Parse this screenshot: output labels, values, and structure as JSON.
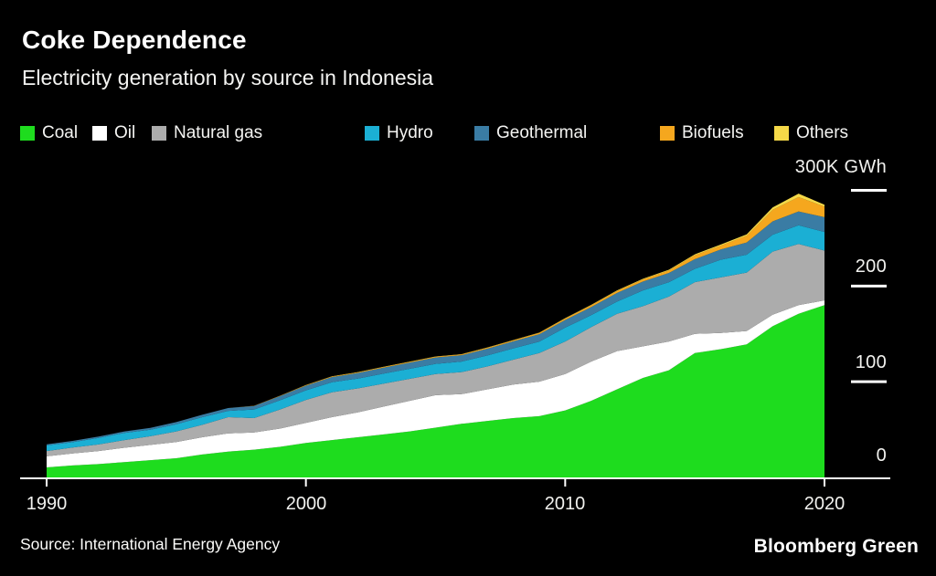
{
  "footer": {
    "source": "Source: International Energy Agency",
    "brand": "Bloomberg Green"
  },
  "colors": {
    "background": "#000000",
    "text": "#ffffff",
    "axis": "#ffffff"
  },
  "chart_data": {
    "type": "area",
    "stacked": true,
    "title": "Coke Dependence",
    "subtitle": "Electricity generation by source in Indonesia",
    "unit": "K GWh",
    "legend_position": "top",
    "grid": false,
    "ylim": [
      0,
      300
    ],
    "x": [
      1990,
      1991,
      1992,
      1993,
      1994,
      1995,
      1996,
      1997,
      1998,
      1999,
      2000,
      2001,
      2002,
      2003,
      2004,
      2005,
      2006,
      2007,
      2008,
      2009,
      2010,
      2011,
      2012,
      2013,
      2014,
      2015,
      2016,
      2017,
      2018,
      2019,
      2020
    ],
    "x_tick_years": [
      1990,
      2000,
      2010,
      2020
    ],
    "x_tick_labels": [
      "1990",
      "2000",
      "2010",
      "2020"
    ],
    "y_tick_values": [
      300,
      200,
      100,
      0
    ],
    "y_tick_labels": [
      "300K GWh",
      "200",
      "100",
      "0"
    ],
    "series": [
      {
        "id": "coal",
        "name": "Coal",
        "color": "#1edc1e",
        "values": [
          10.5,
          12.5,
          14,
          16,
          18,
          20,
          24,
          27,
          29,
          32,
          36,
          39,
          42,
          45,
          48,
          52,
          56,
          59,
          62,
          64,
          70,
          80,
          92,
          104,
          112,
          130,
          134,
          139,
          158,
          171,
          180
        ]
      },
      {
        "id": "oil",
        "name": "Oil",
        "color": "#ffffff",
        "values": [
          11.5,
          12.5,
          13.5,
          15,
          16,
          17,
          18,
          19,
          18,
          19,
          21,
          24,
          26,
          29,
          32,
          34,
          31,
          33,
          35,
          36,
          38,
          41,
          40,
          33,
          30,
          20,
          17,
          14,
          12,
          9,
          5
        ]
      },
      {
        "id": "natural-gas",
        "name": "Natural gas",
        "color": "#acacac",
        "values": [
          5.6,
          6.2,
          7,
          8,
          9,
          11,
          13,
          17,
          15,
          20,
          24,
          26,
          25,
          24,
          23,
          22,
          23,
          24,
          26,
          30,
          34,
          36,
          39,
          42,
          47,
          54,
          58,
          61,
          66,
          64,
          52
        ]
      },
      {
        "id": "hydro",
        "name": "Hydro",
        "color": "#1bafd4",
        "values": [
          5.9,
          5.7,
          6.8,
          7.5,
          6.9,
          7.6,
          8,
          6.5,
          9,
          9.6,
          10,
          10.5,
          10.3,
          10.5,
          10.5,
          10.7,
          11,
          11.5,
          11.8,
          11.9,
          14.5,
          12.5,
          12.8,
          16.4,
          15,
          14,
          18.5,
          18.7,
          17.6,
          19.5,
          19.5
        ]
      },
      {
        "id": "geothermal",
        "name": "Geothermal",
        "color": "#3a7ca4",
        "values": [
          1.1,
          1.2,
          1.4,
          1.6,
          1.8,
          2.2,
          2.5,
          3,
          3.6,
          4.4,
          4.9,
          5.3,
          5.8,
          6.2,
          6.5,
          6.6,
          6.7,
          7,
          7.4,
          7.8,
          8,
          8.5,
          9,
          9.3,
          9.7,
          10.1,
          10.7,
          12.8,
          14,
          14.5,
          15.5
        ]
      },
      {
        "id": "biofuels",
        "name": "Biofuels",
        "color": "#f5a71e",
        "values": [
          0,
          0,
          0,
          0,
          0,
          0,
          0,
          0,
          0.3,
          0.4,
          0.5,
          0.6,
          0.6,
          0.7,
          0.7,
          0.8,
          0.8,
          0.9,
          1,
          1.2,
          1.5,
          1.8,
          2,
          2.2,
          2.5,
          4,
          4,
          7,
          12,
          15,
          11
        ]
      },
      {
        "id": "others",
        "name": "Others",
        "color": "#f5d948",
        "values": [
          0,
          0,
          0,
          0,
          0,
          0,
          0,
          0,
          0,
          0,
          0.2,
          0.3,
          0.3,
          0.3,
          0.3,
          0.3,
          0.3,
          0.4,
          0.4,
          0.4,
          0.5,
          0.5,
          0.6,
          0.7,
          0.8,
          1,
          1.2,
          1.5,
          2.5,
          3.5,
          2
        ]
      }
    ]
  }
}
